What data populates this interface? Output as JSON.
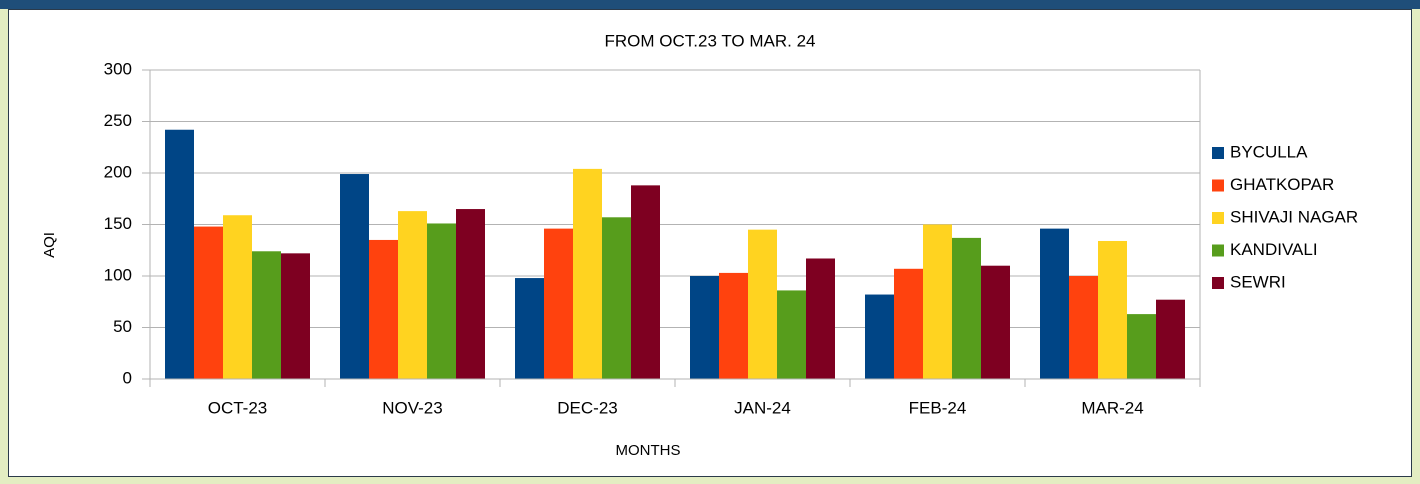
{
  "chart_data": {
    "type": "bar",
    "title": "FROM OCT.23 TO MAR. 24",
    "x_label": "MONTHS",
    "y_label": "AQI",
    "categories": [
      "OCT-23",
      "NOV-23",
      "DEC-23",
      "JAN-24",
      "FEB-24",
      "MAR-24"
    ],
    "series": [
      {
        "name": "BYCULLA",
        "color": "#004586",
        "values": [
          242,
          199,
          98,
          100,
          82,
          146
        ]
      },
      {
        "name": "GHATKOPAR",
        "color": "#ff420e",
        "values": [
          148,
          135,
          146,
          103,
          107,
          100
        ]
      },
      {
        "name": "SHIVAJI NAGAR",
        "color": "#ffd320",
        "values": [
          159,
          163,
          204,
          145,
          150,
          134
        ]
      },
      {
        "name": "KANDIVALI",
        "color": "#579d1c",
        "values": [
          124,
          151,
          157,
          86,
          137,
          63
        ]
      },
      {
        "name": "SEWRI",
        "color": "#7e0021",
        "values": [
          122,
          165,
          188,
          117,
          110,
          77
        ]
      }
    ],
    "ylim": [
      0,
      300
    ],
    "yticks": [
      0,
      50,
      100,
      150,
      200,
      250,
      300
    ],
    "grid": true,
    "legend": "right"
  }
}
